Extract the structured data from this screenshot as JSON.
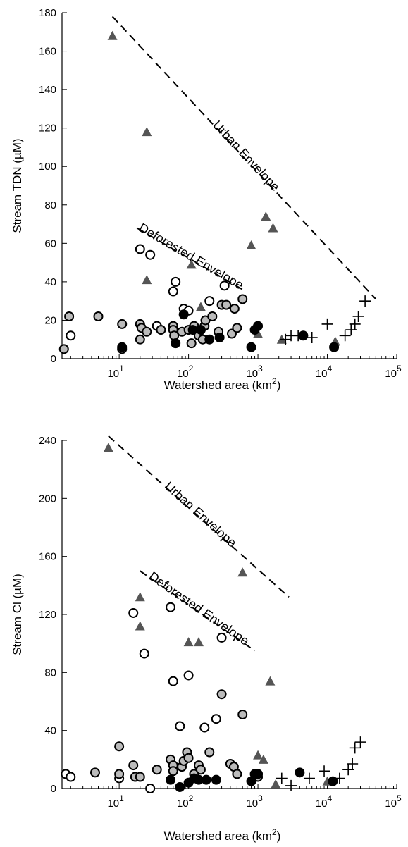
{
  "chart_data": [
    {
      "type": "scatter",
      "xlabel": "Watershed area (km",
      "xlabel_sup": "2",
      "xlabel_end": ")",
      "ylabel": "Stream TDN (µM)",
      "x_scale": "log",
      "xlim": [
        1.5,
        100000
      ],
      "ylim": [
        0,
        180
      ],
      "x_ticks": [
        10,
        100,
        1000,
        10000,
        100000
      ],
      "y_ticks": [
        "0",
        "20",
        "40",
        "60",
        "80",
        "100",
        "120",
        "140",
        "160",
        "180"
      ],
      "legend": "none",
      "grid": false,
      "series": [
        {
          "marker": "triangle",
          "color": "#555555",
          "points": [
            [
              8,
              168
            ],
            [
              25,
              118
            ],
            [
              25,
              41
            ],
            [
              110,
              49
            ],
            [
              150,
              27
            ],
            [
              800,
              59
            ],
            [
              1300,
              74
            ],
            [
              1650,
              68
            ],
            [
              1000,
              13
            ],
            [
              2200,
              10
            ],
            [
              13000,
              9
            ]
          ]
        },
        {
          "marker": "circle-open",
          "color": "#ffffff",
          "points": [
            [
              2,
              12
            ],
            [
              20,
              57
            ],
            [
              28,
              54
            ],
            [
              35,
              17
            ],
            [
              60,
              35
            ],
            [
              65,
              40
            ],
            [
              85,
              26
            ],
            [
              100,
              25
            ],
            [
              200,
              30
            ],
            [
              330,
              38
            ]
          ]
        },
        {
          "marker": "circle-gray",
          "color": "#bbbbbb",
          "points": [
            [
              1.6,
              5
            ],
            [
              1.9,
              22
            ],
            [
              5,
              22
            ],
            [
              11,
              5
            ],
            [
              11,
              18
            ],
            [
              20,
              18
            ],
            [
              20,
              10
            ],
            [
              21,
              16
            ],
            [
              25,
              14
            ],
            [
              40,
              15
            ],
            [
              60,
              17
            ],
            [
              60,
              15
            ],
            [
              62,
              12
            ],
            [
              80,
              14
            ],
            [
              100,
              15
            ],
            [
              110,
              8
            ],
            [
              120,
              17
            ],
            [
              140,
              12
            ],
            [
              160,
              10
            ],
            [
              170,
              17
            ],
            [
              175,
              20
            ],
            [
              220,
              22
            ],
            [
              270,
              14
            ],
            [
              300,
              28
            ],
            [
              350,
              28
            ],
            [
              420,
              13
            ],
            [
              460,
              26
            ],
            [
              500,
              16
            ],
            [
              600,
              31
            ]
          ]
        },
        {
          "marker": "circle-filled",
          "color": "#000000",
          "points": [
            [
              11,
              6
            ],
            [
              65,
              8
            ],
            [
              85,
              23
            ],
            [
              115,
              15
            ],
            [
              150,
              15
            ],
            [
              200,
              10
            ],
            [
              280,
              11
            ],
            [
              800,
              6
            ],
            [
              900,
              15
            ],
            [
              1000,
              17
            ],
            [
              4500,
              12
            ],
            [
              12500,
              6
            ]
          ]
        },
        {
          "marker": "plus",
          "color": "#000000",
          "points": [
            [
              2500,
              10
            ],
            [
              3000,
              12
            ],
            [
              3800,
              12
            ],
            [
              6000,
              11
            ],
            [
              10000,
              18
            ],
            [
              18000,
              12
            ],
            [
              22000,
              15
            ],
            [
              25000,
              18
            ],
            [
              28000,
              22
            ],
            [
              35000,
              30
            ]
          ]
        }
      ],
      "annotations": [
        {
          "text": "Urban Envelope",
          "line_from": [
            8,
            178
          ],
          "line_to": [
            50000,
            31
          ]
        },
        {
          "text": "Deforested Envelope",
          "line_from": [
            18,
            68
          ],
          "line_to": [
            600,
            36
          ]
        }
      ]
    },
    {
      "type": "scatter",
      "xlabel": "Watershed area (km",
      "xlabel_sup": "2",
      "xlabel_end": ")",
      "ylabel": "Stream Cl  (µM)",
      "x_scale": "log",
      "xlim": [
        1.5,
        100000
      ],
      "ylim": [
        0,
        240
      ],
      "x_ticks": [
        10,
        100,
        1000,
        10000,
        100000
      ],
      "y_ticks": [
        "0",
        "40",
        "80",
        "120",
        "160",
        "200",
        "240"
      ],
      "legend": "none",
      "grid": false,
      "series": [
        {
          "marker": "triangle",
          "color": "#555555",
          "points": [
            [
              7,
              235
            ],
            [
              20,
              132
            ],
            [
              20,
              112
            ],
            [
              100,
              101
            ],
            [
              140,
              101
            ],
            [
              600,
              149
            ],
            [
              1000,
              23
            ],
            [
              1200,
              20
            ],
            [
              1500,
              74
            ],
            [
              1800,
              3
            ],
            [
              10000,
              5
            ]
          ]
        },
        {
          "marker": "circle-open",
          "color": "#ffffff",
          "points": [
            [
              1.7,
              10
            ],
            [
              2,
              8
            ],
            [
              10,
              7
            ],
            [
              16,
              121
            ],
            [
              23,
              93
            ],
            [
              28,
              0
            ],
            [
              55,
              125
            ],
            [
              60,
              74
            ],
            [
              75,
              43
            ],
            [
              100,
              78
            ],
            [
              170,
              42
            ],
            [
              250,
              48
            ],
            [
              300,
              104
            ]
          ]
        },
        {
          "marker": "circle-gray",
          "color": "#bbbbbb",
          "points": [
            [
              4.5,
              11
            ],
            [
              10,
              29
            ],
            [
              10,
              10
            ],
            [
              16,
              16
            ],
            [
              17,
              8
            ],
            [
              20,
              8
            ],
            [
              35,
              13
            ],
            [
              55,
              20
            ],
            [
              60,
              16
            ],
            [
              60,
              12
            ],
            [
              80,
              15
            ],
            [
              85,
              19
            ],
            [
              95,
              25
            ],
            [
              100,
              21
            ],
            [
              120,
              10
            ],
            [
              140,
              16
            ],
            [
              150,
              13
            ],
            [
              200,
              25
            ],
            [
              300,
              65
            ],
            [
              400,
              17
            ],
            [
              450,
              15
            ],
            [
              500,
              10
            ],
            [
              600,
              51
            ],
            [
              1000,
              8
            ]
          ]
        },
        {
          "marker": "circle-filled",
          "color": "#000000",
          "points": [
            [
              55,
              6
            ],
            [
              75,
              1
            ],
            [
              100,
              4
            ],
            [
              120,
              7
            ],
            [
              140,
              6
            ],
            [
              180,
              6
            ],
            [
              250,
              6
            ],
            [
              800,
              5
            ],
            [
              900,
              10
            ],
            [
              1000,
              10
            ],
            [
              4000,
              11
            ],
            [
              12000,
              5
            ]
          ]
        },
        {
          "marker": "plus",
          "color": "#000000",
          "points": [
            [
              2200,
              7
            ],
            [
              3000,
              2
            ],
            [
              5500,
              7
            ],
            [
              9000,
              12
            ],
            [
              15000,
              7
            ],
            [
              20000,
              13
            ],
            [
              23000,
              17
            ],
            [
              25000,
              28
            ],
            [
              30000,
              32
            ]
          ]
        }
      ],
      "annotations": [
        {
          "text": "Urban Envelope",
          "line_from": [
            7,
            243
          ],
          "line_to": [
            2800,
            132
          ]
        },
        {
          "text": "Deforested Envelope",
          "line_from": [
            20,
            150
          ],
          "line_to": [
            900,
            95
          ]
        }
      ]
    }
  ]
}
